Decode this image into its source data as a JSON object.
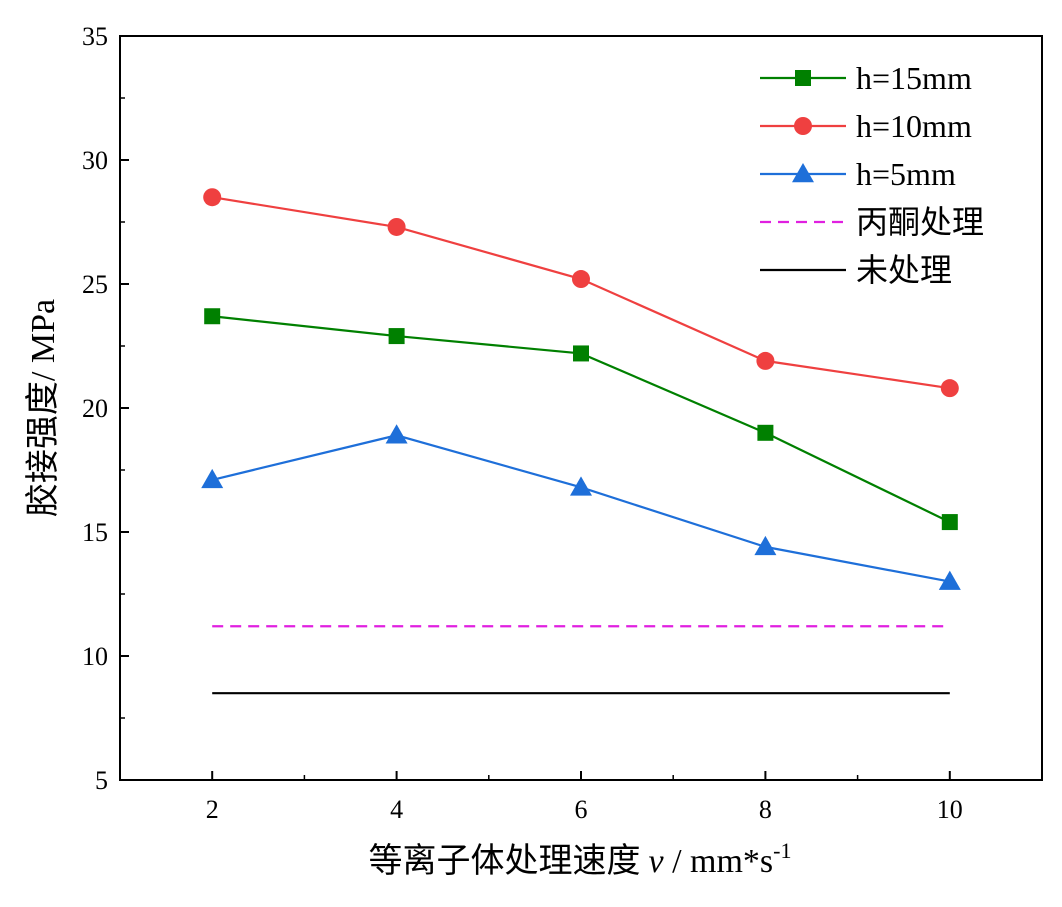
{
  "chart_data": {
    "type": "line",
    "title": "",
    "xlabel": "等离子体处理速度",
    "xlabel_var": "v",
    "xlabel_unit": " / mm*s",
    "xlabel_exp": "-1",
    "ylabel": "胶接强度/ MPa",
    "xlim": [
      1,
      11
    ],
    "ylim": [
      5,
      35
    ],
    "x_ticks": [
      2,
      4,
      6,
      8,
      10
    ],
    "y_ticks": [
      5,
      10,
      15,
      20,
      25,
      30,
      35
    ],
    "grid": false,
    "legend_position": "top-right",
    "x": [
      2,
      4,
      6,
      8,
      10
    ],
    "series": [
      {
        "name": "h=15mm",
        "values": [
          23.7,
          22.9,
          22.2,
          19.0,
          15.4
        ],
        "color": "#008000",
        "marker": "square",
        "style": "solid"
      },
      {
        "name": "h=10mm",
        "values": [
          28.5,
          27.3,
          25.2,
          21.9,
          20.8
        ],
        "color": "#ef4040",
        "marker": "circle",
        "style": "solid"
      },
      {
        "name": "h=5mm",
        "values": [
          17.1,
          18.9,
          16.8,
          14.4,
          13.0
        ],
        "color": "#1e6fd9",
        "marker": "triangle",
        "style": "solid"
      },
      {
        "name": "丙酮处理",
        "values": [
          11.2,
          11.2,
          11.2,
          11.2,
          11.2
        ],
        "color": "#e020e0",
        "marker": "none",
        "style": "dashed"
      },
      {
        "name": "未处理",
        "values": [
          8.5,
          8.5,
          8.5,
          8.5,
          8.5
        ],
        "color": "#000000",
        "marker": "none",
        "style": "solid"
      }
    ]
  }
}
